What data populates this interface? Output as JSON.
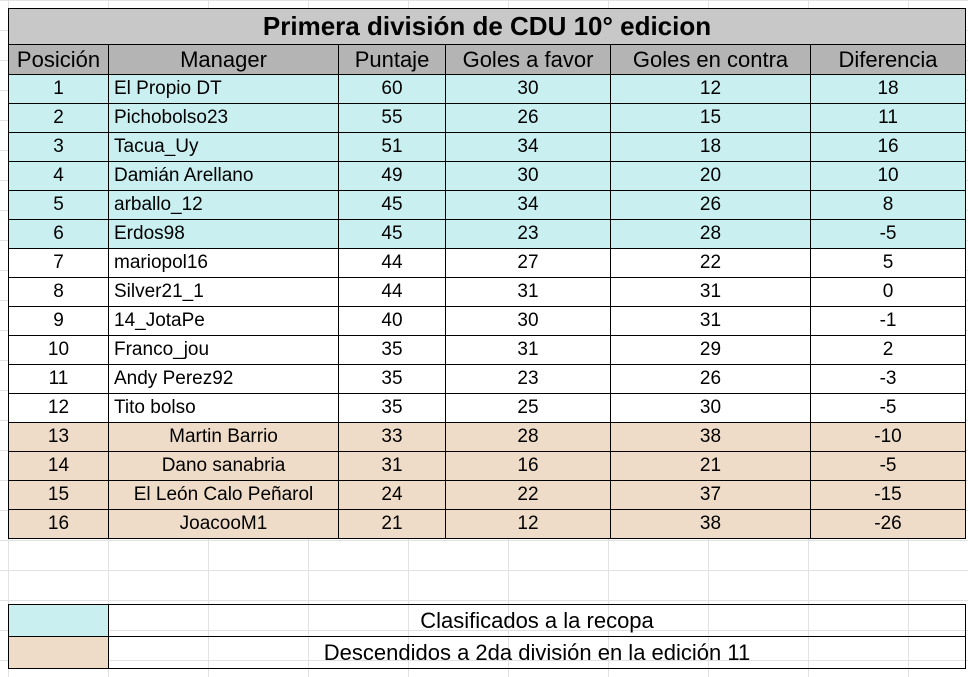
{
  "title": "Primera división de CDU 10° edicion",
  "headers": [
    "Posición",
    "Manager",
    "Puntaje",
    "Goles a favor",
    "Goles en contra",
    "Diferencia"
  ],
  "colors": {
    "clasificados": "#c9eff0",
    "descendidos": "#efdcc8",
    "title_bg": "#c8c8c8",
    "header_bg": "#b4b4b4"
  },
  "rows": [
    {
      "pos": "1",
      "manager": "El Propio DT",
      "pts": "60",
      "gf": "30",
      "gc": "12",
      "dif": "18",
      "status": "clas"
    },
    {
      "pos": "2",
      "manager": "Pichobolso23",
      "pts": "55",
      "gf": "26",
      "gc": "15",
      "dif": "11",
      "status": "clas"
    },
    {
      "pos": "3",
      "manager": "Tacua_Uy",
      "pts": "51",
      "gf": "34",
      "gc": "18",
      "dif": "16",
      "status": "clas"
    },
    {
      "pos": "4",
      "manager": "Damián Arellano",
      "pts": "49",
      "gf": "30",
      "gc": "20",
      "dif": "10",
      "status": "clas"
    },
    {
      "pos": "5",
      "manager": "arballo_12",
      "pts": "45",
      "gf": "34",
      "gc": "26",
      "dif": "8",
      "status": "clas"
    },
    {
      "pos": "6",
      "manager": "Erdos98",
      "pts": "45",
      "gf": "23",
      "gc": "28",
      "dif": "-5",
      "status": "clas"
    },
    {
      "pos": "7",
      "manager": "mariopol16",
      "pts": "44",
      "gf": "27",
      "gc": "22",
      "dif": "5",
      "status": "norm"
    },
    {
      "pos": "8",
      "manager": "Silver21_1",
      "pts": "44",
      "gf": "31",
      "gc": "31",
      "dif": "0",
      "status": "norm"
    },
    {
      "pos": "9",
      "manager": "14_JotaPe",
      "pts": "40",
      "gf": "30",
      "gc": "31",
      "dif": "-1",
      "status": "norm"
    },
    {
      "pos": "10",
      "manager": "Franco_jou",
      "pts": "35",
      "gf": "31",
      "gc": "29",
      "dif": "2",
      "status": "norm"
    },
    {
      "pos": "11",
      "manager": "Andy Perez92",
      "pts": "35",
      "gf": "23",
      "gc": "26",
      "dif": "-3",
      "status": "norm"
    },
    {
      "pos": "12",
      "manager": "Tito bolso",
      "pts": "35",
      "gf": "25",
      "gc": "30",
      "dif": "-5",
      "status": "norm"
    },
    {
      "pos": "13",
      "manager": "Martin Barrio",
      "pts": "33",
      "gf": "28",
      "gc": "38",
      "dif": "-10",
      "status": "desc"
    },
    {
      "pos": "14",
      "manager": "Dano sanabria",
      "pts": "31",
      "gf": "16",
      "gc": "21",
      "dif": "-5",
      "status": "desc"
    },
    {
      "pos": "15",
      "manager": "El León Calo Peñarol",
      "pts": "24",
      "gf": "22",
      "gc": "37",
      "dif": "-15",
      "status": "desc"
    },
    {
      "pos": "16",
      "manager": "JoacooM1",
      "pts": "21",
      "gf": "12",
      "gc": "38",
      "dif": "-26",
      "status": "desc"
    }
  ],
  "legend": {
    "clasificados": "Clasificados a la recopa",
    "descendidos": "Descendidos a 2da división en la edición 11"
  }
}
